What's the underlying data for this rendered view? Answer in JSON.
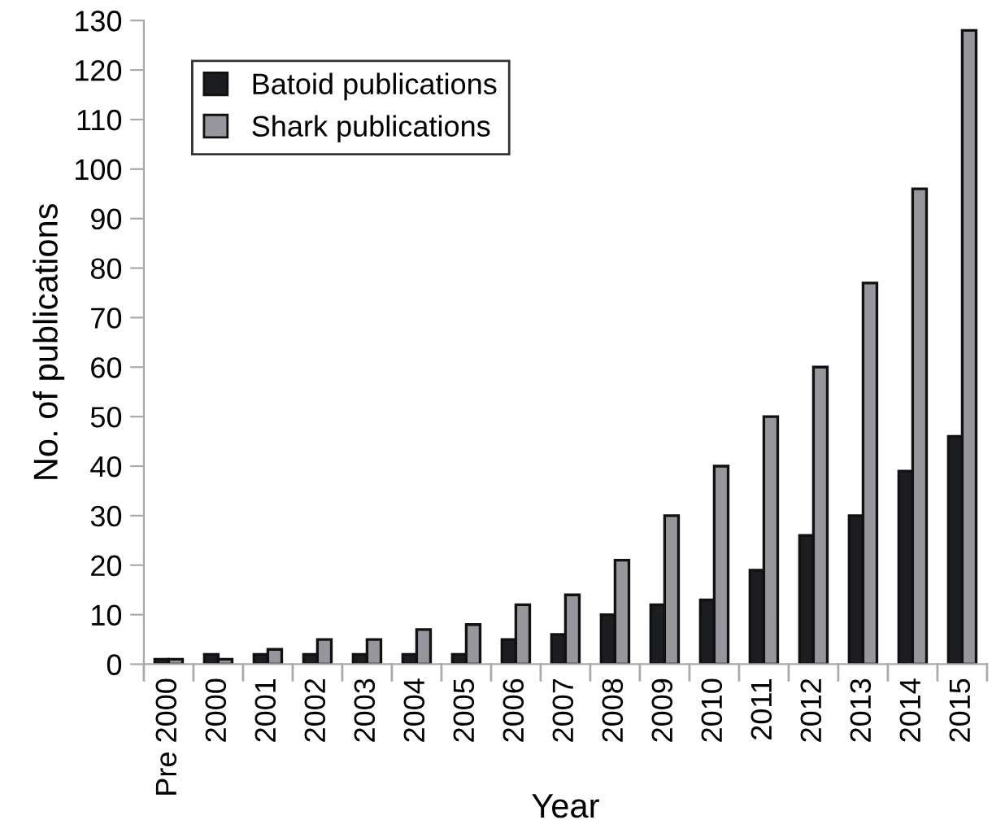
{
  "chart_data": {
    "type": "bar",
    "xlabel": "Year",
    "ylabel": "No. of publications",
    "categories": [
      "Pre 2000",
      "2000",
      "2001",
      "2002",
      "2003",
      "2004",
      "2005",
      "2006",
      "2007",
      "2008",
      "2009",
      "2010",
      "2011",
      "2012",
      "2013",
      "2014",
      "2015"
    ],
    "series": [
      {
        "name": "Batoid publications",
        "color": "#1c1d21",
        "values": [
          1,
          2,
          2,
          2,
          2,
          2,
          2,
          5,
          6,
          10,
          12,
          13,
          19,
          26,
          30,
          39,
          46
        ]
      },
      {
        "name": "Shark publications",
        "color": "#96969c",
        "values": [
          1,
          1,
          3,
          5,
          5,
          7,
          8,
          12,
          14,
          21,
          30,
          40,
          50,
          60,
          77,
          96,
          128
        ]
      }
    ],
    "ylim": [
      0,
      130
    ],
    "yticks": [
      0,
      10,
      20,
      30,
      40,
      50,
      60,
      70,
      80,
      90,
      100,
      110,
      120,
      130
    ],
    "grid": false,
    "legend": "top left"
  }
}
